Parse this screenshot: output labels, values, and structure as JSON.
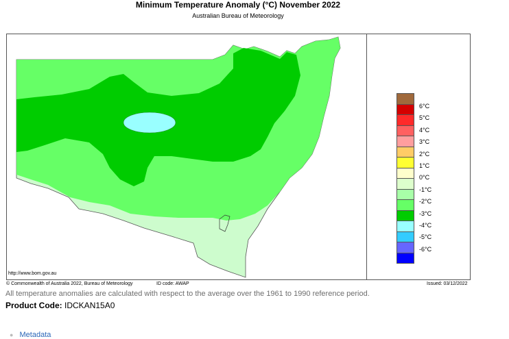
{
  "header": {
    "title": "Minimum Temperature Anomaly (°C)  November 2022",
    "subtitle": "Australian Bureau of Meteorology"
  },
  "map": {
    "region": "New South Wales",
    "source_url": "http://www.bom.gov.au",
    "colors": {
      "-1": "#cdfccd",
      "-2": "#66ff66",
      "-3": "#00cc00",
      "-4": "#99ffff"
    }
  },
  "legend": {
    "items": [
      {
        "label": "",
        "color": "#a0693c"
      },
      {
        "label": "6°C",
        "color": "#d40000"
      },
      {
        "label": "5°C",
        "color": "#ff2a2a"
      },
      {
        "label": "4°C",
        "color": "#ff6060"
      },
      {
        "label": "3°C",
        "color": "#ff9e9e"
      },
      {
        "label": "2°C",
        "color": "#ffcc66"
      },
      {
        "label": "1°C",
        "color": "#ffff33"
      },
      {
        "label": "0°C",
        "color": "#ffffcc"
      },
      {
        "label": "-1°C",
        "color": "#ddffcc"
      },
      {
        "label": "-2°C",
        "color": "#a8ffa8"
      },
      {
        "label": "-3°C",
        "color": "#66ff66"
      },
      {
        "label": "-4°C",
        "color": "#00cc00"
      },
      {
        "label": "-5°C",
        "color": "#99ffff"
      },
      {
        "label": "-6°C",
        "color": "#33ccff"
      },
      {
        "label": "",
        "color": "#6666ff"
      },
      {
        "label": "",
        "color": "#0000ff"
      }
    ]
  },
  "footer": {
    "copyright": "© Commonwealth of Australia 2022, Bureau of Meteorology",
    "id_code": "ID code: AWAP",
    "issued": "Issued: 03/12/2022"
  },
  "note": "All temperature anomalies are calculated with respect to the average over the 1961 to 1990 reference period.",
  "product": {
    "label": "Product Code:",
    "code": "IDCKAN15A0"
  },
  "links": {
    "metadata": "Metadata"
  }
}
